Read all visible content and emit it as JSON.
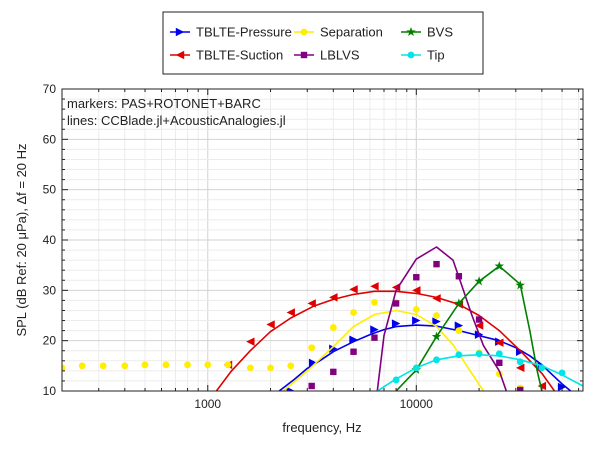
{
  "chart_data": {
    "type": "line",
    "xscale": "log",
    "xlabel": "frequency, Hz",
    "ylabel": "SPL (dB Ref: 20 μPa), Δf = 20 Hz",
    "xlim": [
      200,
      63000
    ],
    "ylim": [
      10,
      70
    ],
    "xticks": [
      1000,
      10000
    ],
    "xtick_labels": [
      "1000",
      "10000"
    ],
    "yticks": [
      10,
      20,
      30,
      40,
      50,
      60,
      70
    ],
    "ytick_labels": [
      "10",
      "20",
      "30",
      "40",
      "50",
      "60",
      "70"
    ],
    "grid": true,
    "legend_position": "top, outside plot",
    "annotation_lines": [
      "markers: PAS+ROTONET+BARC",
      "lines: CCBlade.jl+AcousticAnalogies.jl"
    ],
    "series": [
      {
        "name": "TBLTE-Pressure",
        "color": "#0000ee",
        "marker": "triangle-right",
        "line": [
          [
            2200,
            10
          ],
          [
            2600,
            12.3
          ],
          [
            3000,
            14.5
          ],
          [
            3500,
            16.2
          ],
          [
            4000,
            17.8
          ],
          [
            5000,
            19.8
          ],
          [
            6000,
            21.2
          ],
          [
            7000,
            22.2
          ],
          [
            8000,
            22.8
          ],
          [
            10000,
            23.1
          ],
          [
            12500,
            22.9
          ],
          [
            16000,
            22
          ],
          [
            20000,
            21
          ],
          [
            25000,
            20
          ],
          [
            30000,
            18.6
          ],
          [
            35000,
            17
          ],
          [
            40000,
            15.2
          ],
          [
            45000,
            13.2
          ],
          [
            50000,
            11.4
          ],
          [
            55000,
            10
          ]
        ],
        "points": [
          [
            2500,
            10
          ],
          [
            3200,
            15.6
          ],
          [
            4000,
            18.4
          ],
          [
            5000,
            20.2
          ],
          [
            6300,
            22.2
          ],
          [
            8000,
            23.4
          ],
          [
            10000,
            24
          ],
          [
            12500,
            23.8
          ],
          [
            16000,
            23
          ],
          [
            20000,
            21.2
          ],
          [
            25000,
            19.8
          ],
          [
            31500,
            17.8
          ],
          [
            40000,
            14.8
          ],
          [
            50000,
            10.8
          ]
        ]
      },
      {
        "name": "TBLTE-Suction",
        "color": "#e00000",
        "marker": "triangle-left",
        "line": [
          [
            1100,
            10
          ],
          [
            1300,
            14
          ],
          [
            1600,
            18
          ],
          [
            2000,
            21.8
          ],
          [
            2500,
            24.5
          ],
          [
            3200,
            26.8
          ],
          [
            4000,
            28.2
          ],
          [
            5000,
            29.2
          ],
          [
            6300,
            29.8
          ],
          [
            8000,
            29.8
          ],
          [
            10000,
            29.4
          ],
          [
            12500,
            28.6
          ],
          [
            16000,
            27.2
          ],
          [
            20000,
            25
          ],
          [
            25000,
            22
          ],
          [
            31500,
            18
          ],
          [
            40000,
            13.5
          ],
          [
            46000,
            10
          ]
        ],
        "points": [
          [
            1250,
            15.2
          ],
          [
            1600,
            19.8
          ],
          [
            2000,
            23.2
          ],
          [
            2500,
            25.6
          ],
          [
            3150,
            27.4
          ],
          [
            4000,
            28.6
          ],
          [
            5000,
            30.2
          ],
          [
            6300,
            30.8
          ],
          [
            8000,
            30.6
          ],
          [
            10000,
            30
          ],
          [
            12500,
            28.4
          ],
          [
            16000,
            27.2
          ],
          [
            20000,
            23
          ],
          [
            25000,
            19.6
          ],
          [
            31500,
            14.6
          ],
          [
            40000,
            11
          ]
        ]
      },
      {
        "name": "Separation",
        "color": "#ffee00",
        "marker": "circle",
        "line": [
          [
            2300,
            10
          ],
          [
            3000,
            14
          ],
          [
            4000,
            18.8
          ],
          [
            5000,
            22.8
          ],
          [
            6300,
            25.2
          ],
          [
            8000,
            26
          ],
          [
            10000,
            25.2
          ],
          [
            12500,
            22.8
          ],
          [
            15000,
            19.2
          ],
          [
            18000,
            14.2
          ],
          [
            21000,
            10
          ]
        ],
        "points": [
          [
            200,
            14.6
          ],
          [
            250,
            15
          ],
          [
            315,
            15
          ],
          [
            400,
            15
          ],
          [
            500,
            15.2
          ],
          [
            630,
            15.2
          ],
          [
            800,
            15.2
          ],
          [
            1000,
            15.2
          ],
          [
            1250,
            15.2
          ],
          [
            1600,
            14.6
          ],
          [
            2000,
            14.6
          ],
          [
            2500,
            15
          ],
          [
            3150,
            18.6
          ],
          [
            4000,
            22.6
          ],
          [
            5000,
            25.6
          ],
          [
            6300,
            27.6
          ],
          [
            8000,
            27.6
          ],
          [
            10000,
            26.2
          ],
          [
            12500,
            25
          ],
          [
            16000,
            22
          ],
          [
            20000,
            17.6
          ],
          [
            25000,
            13.4
          ],
          [
            31500,
            10.6
          ]
        ]
      },
      {
        "name": "LBLVS",
        "color": "#800080",
        "marker": "square",
        "line": [
          [
            6500,
            10
          ],
          [
            7000,
            21
          ],
          [
            8000,
            30
          ],
          [
            10000,
            36.2
          ],
          [
            12500,
            38.6
          ],
          [
            15000,
            36
          ],
          [
            16500,
            31
          ],
          [
            18500,
            25
          ],
          [
            21000,
            19
          ],
          [
            25000,
            14
          ],
          [
            27000,
            10
          ]
        ],
        "points": [
          [
            3150,
            11
          ],
          [
            4000,
            13.8
          ],
          [
            5000,
            17.8
          ],
          [
            6300,
            20.6
          ],
          [
            8000,
            27.4
          ],
          [
            10000,
            32.6
          ],
          [
            12500,
            35.2
          ],
          [
            16000,
            32.8
          ],
          [
            20000,
            24.2
          ],
          [
            25000,
            15.6
          ],
          [
            31500,
            10.2
          ]
        ]
      },
      {
        "name": "BVS",
        "color": "#008000",
        "marker": "star",
        "line": [
          [
            8000,
            10
          ],
          [
            10000,
            14.2
          ],
          [
            12500,
            20.8
          ],
          [
            16000,
            27.4
          ],
          [
            20000,
            31.8
          ],
          [
            25000,
            34.8
          ],
          [
            31500,
            31.2
          ],
          [
            35000,
            22
          ],
          [
            38000,
            14
          ],
          [
            40000,
            10
          ]
        ],
        "points": [
          [
            10000,
            14.2
          ],
          [
            12500,
            20.8
          ],
          [
            16000,
            27.4
          ],
          [
            20000,
            31.8
          ],
          [
            25000,
            34.8
          ],
          [
            31500,
            31
          ]
        ]
      },
      {
        "name": "Tip",
        "color": "#00e5e5",
        "marker": "circle",
        "line": [
          [
            6500,
            10
          ],
          [
            8000,
            12.4
          ],
          [
            10000,
            14.6
          ],
          [
            12500,
            16.2
          ],
          [
            16000,
            17
          ],
          [
            20000,
            17.2
          ],
          [
            25000,
            17
          ],
          [
            31500,
            16.2
          ],
          [
            40000,
            15
          ],
          [
            50000,
            13.2
          ],
          [
            63000,
            11
          ]
        ],
        "points": [
          [
            8000,
            12.2
          ],
          [
            10000,
            14.6
          ],
          [
            12500,
            16.2
          ],
          [
            16000,
            17.2
          ],
          [
            20000,
            17.4
          ],
          [
            25000,
            17.4
          ],
          [
            31500,
            15.8
          ],
          [
            40000,
            14.6
          ],
          [
            50000,
            13.6
          ]
        ]
      }
    ]
  }
}
